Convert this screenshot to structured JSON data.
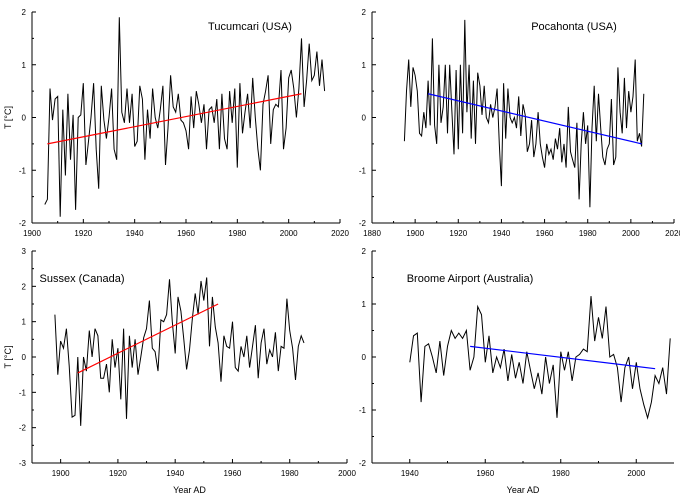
{
  "chart_data": [
    {
      "type": "line",
      "title": "Tucumcari (USA)",
      "xlabel": "",
      "ylabel": "T [°C]",
      "xlim": [
        1900,
        2020
      ],
      "ylim": [
        -2,
        2
      ],
      "xticks": [
        1900,
        1920,
        1940,
        1960,
        1980,
        2000,
        2020
      ],
      "yticks": [
        -2,
        -1,
        0,
        1,
        2
      ],
      "x_start": 1905,
      "series": [
        {
          "values": [
            -1.65,
            -1.55,
            0.55,
            -0.05,
            0.35,
            0.4,
            -1.88,
            0.15,
            -1.1,
            0.45,
            -0.8,
            0.05,
            -1.75,
            0.0,
            0.05,
            0.65,
            -0.9,
            -0.45,
            0.0,
            0.65,
            -0.6,
            -1.35,
            0.6,
            -0.05,
            -0.4,
            0.0,
            0.55,
            -0.6,
            -0.8,
            1.9,
            0.1,
            -0.1,
            0.55,
            -0.1,
            0.45,
            -0.55,
            -0.45,
            0.6,
            0.35,
            -0.8,
            0.15,
            -0.4,
            0.55,
            0.0,
            -0.2,
            0.15,
            0.6,
            -0.9,
            -0.2,
            0.8,
            0.2,
            0.1,
            0.45,
            -0.05,
            -0.1,
            -0.25,
            -0.6,
            0.4,
            -0.2,
            0.5,
            0.25,
            -0.1,
            0.25,
            -0.6,
            0.15,
            0.2,
            -0.1,
            0.35,
            -0.6,
            0.45,
            -0.4,
            -0.6,
            0.5,
            -0.1,
            0.55,
            -0.95,
            0.65,
            -0.3,
            0.1,
            0.45,
            -0.2,
            0.75,
            0.0,
            -0.6,
            -1.0,
            0.25,
            0.5,
            0.8,
            -0.5,
            0.15,
            0.25,
            0.2,
            0.9,
            -0.6,
            -0.2,
            0.75,
            0.9,
            0.55,
            0.0,
            0.55,
            1.5,
            0.2,
            0.7,
            1.4,
            0.7,
            0.8,
            1.25,
            0.6,
            1.1,
            0.5
          ]
        }
      ],
      "trend": {
        "x": [
          1906,
          2005
        ],
        "y": [
          -0.5,
          0.45
        ],
        "color": "#ff0000"
      }
    },
    {
      "type": "line",
      "title": "Pocahonta (USA)",
      "xlabel": "",
      "ylabel": "",
      "xlim": [
        1880,
        2020
      ],
      "ylim": [
        -2,
        2
      ],
      "xticks": [
        1880,
        1900,
        1920,
        1940,
        1960,
        1980,
        2000,
        2020
      ],
      "yticks": [
        -2,
        -1,
        0,
        1,
        2
      ],
      "x_start": 1895,
      "series": [
        {
          "values": [
            -0.45,
            0.5,
            1.1,
            0.2,
            0.95,
            0.8,
            0.5,
            -0.3,
            -0.35,
            0.1,
            -0.2,
            0.7,
            -0.15,
            1.5,
            -0.15,
            -0.5,
            1.0,
            -0.1,
            0.2,
            1.0,
            -0.3,
            1.0,
            0.15,
            -0.7,
            0.9,
            -0.6,
            1.0,
            -0.3,
            1.85,
            0.1,
            1.0,
            -0.4,
            0.7,
            -0.5,
            0.85,
            0.6,
            0.05,
            0.6,
            0.0,
            -0.1,
            0.25,
            0.0,
            0.2,
            0.55,
            -0.5,
            -1.3,
            0.65,
            -0.4,
            0.55,
            0.0,
            -0.1,
            0.0,
            -0.2,
            0.4,
            -0.35,
            0.25,
            0.05,
            -0.65,
            -0.5,
            -0.05,
            -0.75,
            -0.5,
            0.1,
            -0.5,
            -0.75,
            -0.95,
            -0.5,
            -0.7,
            -0.6,
            -0.8,
            -0.4,
            -0.6,
            -0.2,
            -0.85,
            -0.5,
            -0.95,
            0.2,
            -0.65,
            -0.8,
            -0.95,
            -0.1,
            -1.55,
            -0.5,
            0.1,
            -0.5,
            -0.15,
            -1.7,
            -0.2,
            0.6,
            -0.45,
            0.45,
            -0.2,
            -0.75,
            -0.9,
            -0.6,
            -0.5,
            0.35,
            -0.9,
            -0.75,
            0.95,
            0.1,
            -0.3,
            0.75,
            -0.2,
            0.5,
            0.1,
            0.4,
            1.1,
            -0.45,
            -0.3,
            -0.55,
            0.45
          ]
        }
      ],
      "trend": {
        "x": [
          1906,
          2005
        ],
        "y": [
          0.45,
          -0.5
        ],
        "color": "#0000ff"
      }
    },
    {
      "type": "line",
      "title": "Sussex (Canada)",
      "xlabel": "Year AD",
      "ylabel": "T [°C]",
      "xlim": [
        1890,
        2000
      ],
      "ylim": [
        -3,
        3
      ],
      "xticks": [
        1900,
        1920,
        1940,
        1960,
        1980,
        2000
      ],
      "yticks": [
        -3,
        -2,
        -1,
        0,
        1,
        2,
        3
      ],
      "x_start": 1898,
      "series": [
        {
          "values": [
            1.2,
            -0.5,
            0.45,
            0.25,
            0.8,
            -0.25,
            -1.7,
            -1.65,
            0.0,
            -1.95,
            0.0,
            -0.4,
            0.75,
            0.0,
            0.8,
            0.6,
            -0.6,
            -0.6,
            -0.2,
            -1.0,
            0.5,
            -0.3,
            0.25,
            -1.2,
            0.8,
            -1.75,
            0.6,
            -0.3,
            0.5,
            -0.5,
            0.0,
            0.55,
            0.8,
            1.6,
            0.25,
            0.15,
            -0.4,
            1.05,
            1.0,
            1.2,
            2.2,
            1.0,
            0.1,
            1.7,
            1.3,
            0.5,
            -0.35,
            0.2,
            1.1,
            1.8,
            1.2,
            2.15,
            1.6,
            2.25,
            0.3,
            1.7,
            0.85,
            0.4,
            -0.7,
            0.6,
            0.3,
            0.25,
            1.0,
            -0.3,
            -0.4,
            0.3,
            0.0,
            0.6,
            -0.3,
            0.3,
            0.9,
            -0.6,
            0.4,
            0.8,
            -0.2,
            0.2,
            0.0,
            0.7,
            -0.4,
            0.3,
            0.25,
            1.65,
            0.75,
            0.25,
            -0.65,
            0.3,
            0.6,
            0.4
          ]
        }
      ],
      "trend": {
        "x": [
          1906,
          1955
        ],
        "y": [
          -0.45,
          1.5
        ],
        "color": "#ff0000"
      }
    },
    {
      "type": "line",
      "title": "Broome Airport (Australia)",
      "xlabel": "Year AD",
      "ylabel": "",
      "xlim": [
        1930,
        2010
      ],
      "ylim": [
        -2,
        2
      ],
      "xticks": [
        1940,
        1960,
        1980,
        2000
      ],
      "yticks": [
        -2,
        -1,
        0,
        1,
        2
      ],
      "x_start": 1940,
      "series": [
        {
          "values": [
            -0.1,
            0.4,
            0.45,
            -0.85,
            0.2,
            0.25,
            0.0,
            -0.3,
            0.3,
            -0.35,
            0.2,
            0.5,
            0.35,
            0.45,
            0.35,
            0.5,
            -0.25,
            0.0,
            0.95,
            0.8,
            -0.1,
            0.4,
            -0.3,
            0.0,
            -0.2,
            0.15,
            -0.45,
            0.05,
            -0.4,
            -0.1,
            -0.5,
            0.1,
            -0.25,
            -0.6,
            -0.3,
            -0.7,
            0.0,
            -0.5,
            -0.15,
            -1.15,
            0.1,
            -0.25,
            0.1,
            -0.45,
            0.0,
            0.05,
            0.15,
            0.1,
            1.15,
            0.3,
            0.75,
            0.35,
            0.95,
            0.0,
            0.05,
            -0.2,
            -0.85,
            -0.2,
            0.0,
            -0.6,
            -0.1,
            -0.6,
            -0.9,
            -1.15,
            -0.85,
            -0.35,
            -0.5,
            -0.2,
            -0.7,
            0.35
          ]
        }
      ],
      "trend": {
        "x": [
          1956,
          2005
        ],
        "y": [
          0.2,
          -0.22
        ],
        "color": "#0000ff"
      }
    }
  ]
}
